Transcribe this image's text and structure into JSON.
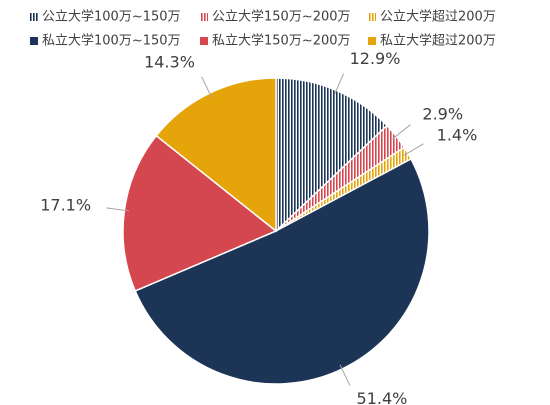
{
  "chart_data": {
    "type": "pie",
    "categories": [
      "公立大学100万~150万",
      "公立大学150万~200万",
      "公立大学超过200万",
      "私立大学100万~150万",
      "私立大学150万~200万",
      "私立大学超过200万"
    ],
    "values": [
      12.9,
      2.9,
      1.4,
      51.4,
      17.1,
      14.3
    ],
    "value_labels": [
      "12.9%",
      "2.9%",
      "1.4%",
      "51.4%",
      "17.1%",
      "14.3%"
    ],
    "colors": [
      "#1c3557",
      "#d5474f",
      "#e5a50a",
      "#1c3557",
      "#d5474f",
      "#e5a50a"
    ],
    "hatched": [
      true,
      true,
      true,
      false,
      false,
      false
    ],
    "legend": "top"
  }
}
